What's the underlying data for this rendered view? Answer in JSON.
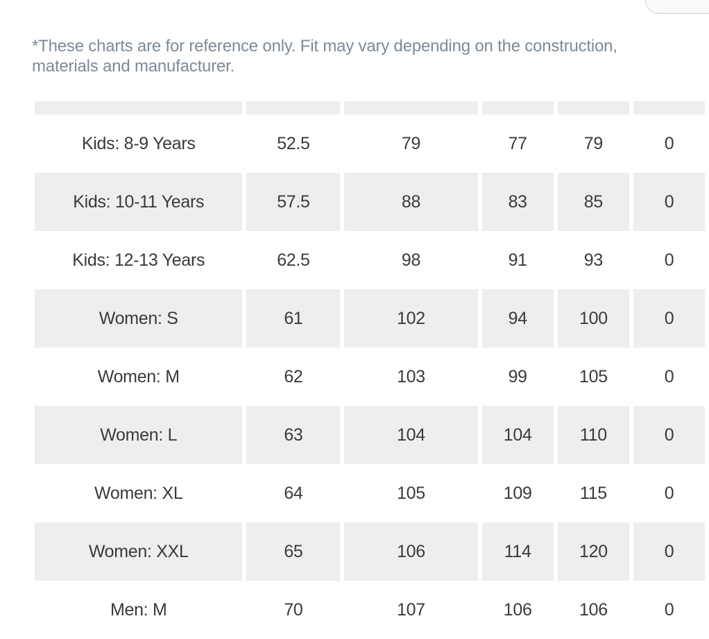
{
  "disclaimer": "*These charts are for reference only. Fit may vary depending on the construction, materials and manufacturer.",
  "table": {
    "rows": [
      [
        "Kids: 8-9 Years",
        "52.5",
        "79",
        "77",
        "79",
        "0"
      ],
      [
        "Kids: 10-11 Years",
        "57.5",
        "88",
        "83",
        "85",
        "0"
      ],
      [
        "Kids: 12-13 Years",
        "62.5",
        "98",
        "91",
        "93",
        "0"
      ],
      [
        "Women: S",
        "61",
        "102",
        "94",
        "100",
        "0"
      ],
      [
        "Women: M",
        "62",
        "103",
        "99",
        "105",
        "0"
      ],
      [
        "Women: L",
        "63",
        "104",
        "104",
        "110",
        "0"
      ],
      [
        "Women: XL",
        "64",
        "105",
        "109",
        "115",
        "0"
      ],
      [
        "Women: XXL",
        "65",
        "106",
        "114",
        "120",
        "0"
      ],
      [
        "Men: M",
        "70",
        "107",
        "106",
        "106",
        "0"
      ]
    ]
  }
}
